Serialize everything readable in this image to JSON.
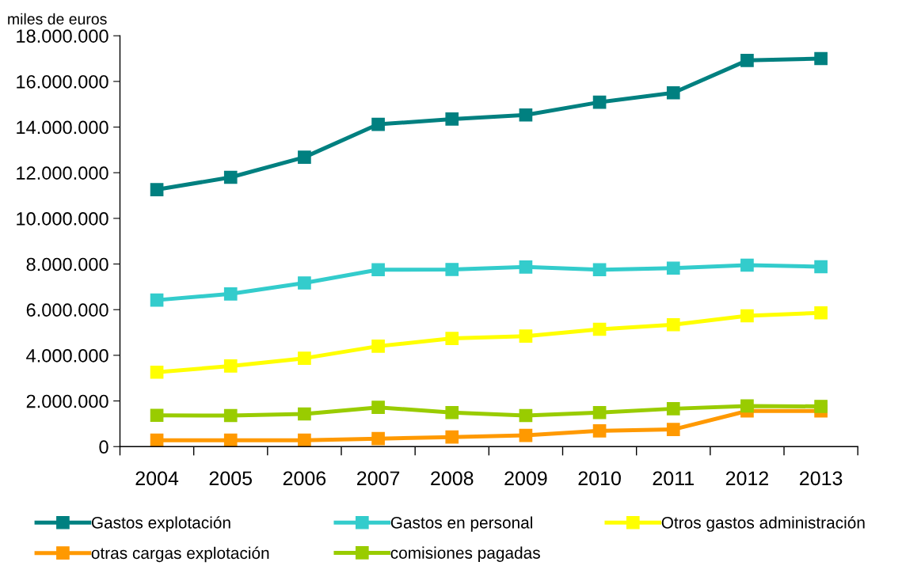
{
  "chart_data": {
    "type": "line",
    "ylabel": "miles de euros",
    "categories": [
      "2004",
      "2005",
      "2006",
      "2007",
      "2008",
      "2009",
      "2010",
      "2011",
      "2012",
      "2013"
    ],
    "series": [
      {
        "name": "Gastos explotación",
        "color": "#008080",
        "values": [
          11260000,
          11800000,
          12680000,
          14120000,
          14350000,
          14530000,
          15090000,
          15500000,
          16920000,
          17000000
        ]
      },
      {
        "name": "Gastos en personal",
        "color": "#33cccc",
        "values": [
          6420000,
          6690000,
          7170000,
          7750000,
          7760000,
          7870000,
          7750000,
          7820000,
          7950000,
          7880000
        ]
      },
      {
        "name": "Otros gastos administración",
        "color": "#ffff00",
        "values": [
          3260000,
          3530000,
          3870000,
          4400000,
          4740000,
          4840000,
          5140000,
          5340000,
          5730000,
          5860000
        ]
      },
      {
        "name": "otras cargas explotación",
        "color": "#ff9900",
        "values": [
          280000,
          280000,
          280000,
          350000,
          420000,
          490000,
          690000,
          750000,
          1560000,
          1560000
        ]
      },
      {
        "name": "comisiones pagadas",
        "color": "#99cc00",
        "values": [
          1370000,
          1360000,
          1430000,
          1720000,
          1490000,
          1360000,
          1490000,
          1660000,
          1780000,
          1760000
        ]
      }
    ],
    "ylim": [
      0,
      18000000
    ],
    "yticks": [
      0,
      {
        "value": 2000000,
        "label": "2.000.000"
      },
      {
        "value": 4000000,
        "label": "4.000.000"
      },
      {
        "value": 6000000,
        "label": "6.000.000"
      },
      {
        "value": 8000000,
        "label": "8.000.000"
      },
      {
        "value": 10000000,
        "label": "10.000.000"
      },
      {
        "value": 12000000,
        "label": "12.000.000"
      },
      {
        "value": 14000000,
        "label": "14.000.000"
      },
      {
        "value": 16000000,
        "label": "16.000.000"
      },
      {
        "value": 18000000,
        "label": "18.000.000"
      }
    ],
    "grid": false,
    "legend": "bottom",
    "marker": "square",
    "line_style": "solid"
  }
}
